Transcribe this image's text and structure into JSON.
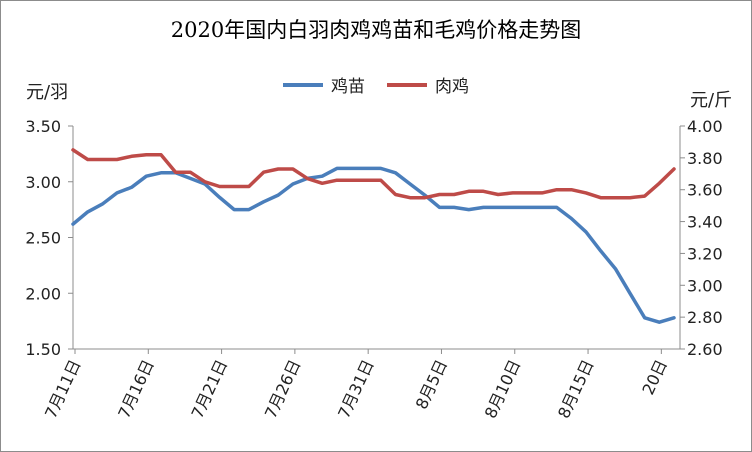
{
  "chart_data": {
    "type": "line",
    "title": "2020年国内白羽肉鸡鸡苗和毛鸡价格走势图",
    "ylabel_left": "元/羽",
    "ylabel_right": "元/斤",
    "xlabel": "",
    "ylim_left": [
      1.5,
      3.5
    ],
    "ylim_right": [
      2.6,
      4.0
    ],
    "yticks_left": [
      "1.50",
      "2.00",
      "2.50",
      "3.00",
      "3.50"
    ],
    "yticks_right": [
      "2.60",
      "2.80",
      "3.00",
      "3.20",
      "3.40",
      "3.60",
      "3.80",
      "4.00"
    ],
    "x_tick_labels": [
      "7月11日",
      "7月16日",
      "7月21日",
      "7月26日",
      "7月31日",
      "8月5日",
      "8月10日",
      "8月15日",
      "20日"
    ],
    "legend_position": "top-center",
    "grid": false,
    "colors": {
      "chicks": "#4a7ebb",
      "broiler": "#be4b48"
    },
    "series": [
      {
        "name": "鸡苗",
        "axis": "left",
        "values": [
          2.62,
          2.73,
          2.8,
          2.9,
          2.95,
          3.05,
          3.08,
          3.08,
          3.03,
          2.98,
          2.86,
          2.75,
          2.75,
          2.82,
          2.88,
          2.98,
          3.03,
          3.05,
          3.12,
          3.12,
          3.12,
          3.12,
          3.08,
          2.98,
          2.88,
          2.77,
          2.77,
          2.75,
          2.77,
          2.77,
          2.77,
          2.77,
          2.77,
          2.77,
          2.67,
          2.55,
          2.38,
          2.22,
          2.0,
          1.78,
          1.74,
          1.78
        ]
      },
      {
        "name": "肉鸡",
        "axis": "right",
        "values": [
          3.85,
          3.79,
          3.79,
          3.79,
          3.81,
          3.82,
          3.82,
          3.71,
          3.71,
          3.65,
          3.62,
          3.62,
          3.62,
          3.71,
          3.73,
          3.73,
          3.67,
          3.64,
          3.66,
          3.66,
          3.66,
          3.66,
          3.57,
          3.55,
          3.55,
          3.57,
          3.57,
          3.59,
          3.59,
          3.57,
          3.58,
          3.58,
          3.58,
          3.6,
          3.6,
          3.58,
          3.55,
          3.55,
          3.55,
          3.56,
          3.64,
          3.73
        ]
      }
    ]
  }
}
